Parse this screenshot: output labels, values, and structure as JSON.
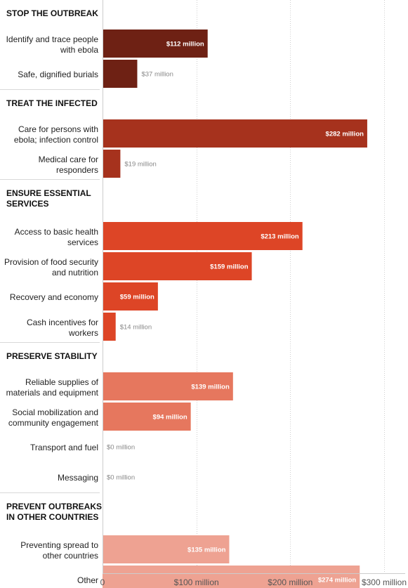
{
  "chart_data": {
    "type": "bar",
    "orientation": "horizontal",
    "title": "",
    "xlabel": "",
    "ylabel": "",
    "xlim": [
      0,
      300
    ],
    "x_ticks": [
      "0",
      "$100 million",
      "$200 million",
      "$300 million"
    ],
    "grid": true,
    "unit_suffix": " million",
    "groups": [
      {
        "heading": "STOP THE OUTBREAK",
        "color": "#6e2114",
        "items": [
          {
            "label": "Identify and trace people\nwith ebola",
            "value": 112,
            "value_label": "$112 million"
          },
          {
            "label": "Safe, dignified burials",
            "value": 37,
            "value_label": "$37 million"
          }
        ]
      },
      {
        "heading": "TREAT THE INFECTED",
        "color": "#a6321d",
        "items": [
          {
            "label": "Care for persons with\nebola; infection control",
            "value": 282,
            "value_label": "$282 million"
          },
          {
            "label": "Medical care for\nresponders",
            "value": 19,
            "value_label": "$19 million"
          }
        ]
      },
      {
        "heading": "ENSURE ESSENTIAL\nSERVICES",
        "color": "#dd4526",
        "items": [
          {
            "label": "Access to basic health\nservices",
            "value": 213,
            "value_label": "$213 million"
          },
          {
            "label": "Provision of food security\nand nutrition",
            "value": 159,
            "value_label": "$159 million"
          },
          {
            "label": "Recovery and economy",
            "value": 59,
            "value_label": "$59 million"
          },
          {
            "label": "Cash incentives for\nworkers",
            "value": 14,
            "value_label": "$14 million"
          }
        ]
      },
      {
        "heading": "PRESERVE STABILITY",
        "color": "#e6775e",
        "items": [
          {
            "label": "Reliable supplies of\nmaterials and equipment",
            "value": 139,
            "value_label": "$139 million"
          },
          {
            "label": "Social mobilization and\ncommunity engagement",
            "value": 94,
            "value_label": "$94 million"
          },
          {
            "label": "Transport and fuel",
            "value": 0,
            "value_label": "$0 million"
          },
          {
            "label": "Messaging",
            "value": 0,
            "value_label": "$0 million"
          }
        ]
      },
      {
        "heading": "PREVENT OUTBREAKS\nIN OTHER COUNTRIES",
        "color": "#eea292",
        "items": [
          {
            "label": "Preventing spread to\nother countries",
            "value": 135,
            "value_label": "$135 million"
          },
          {
            "label": "Other",
            "value": 274,
            "value_label": "$274 million"
          }
        ]
      }
    ]
  }
}
